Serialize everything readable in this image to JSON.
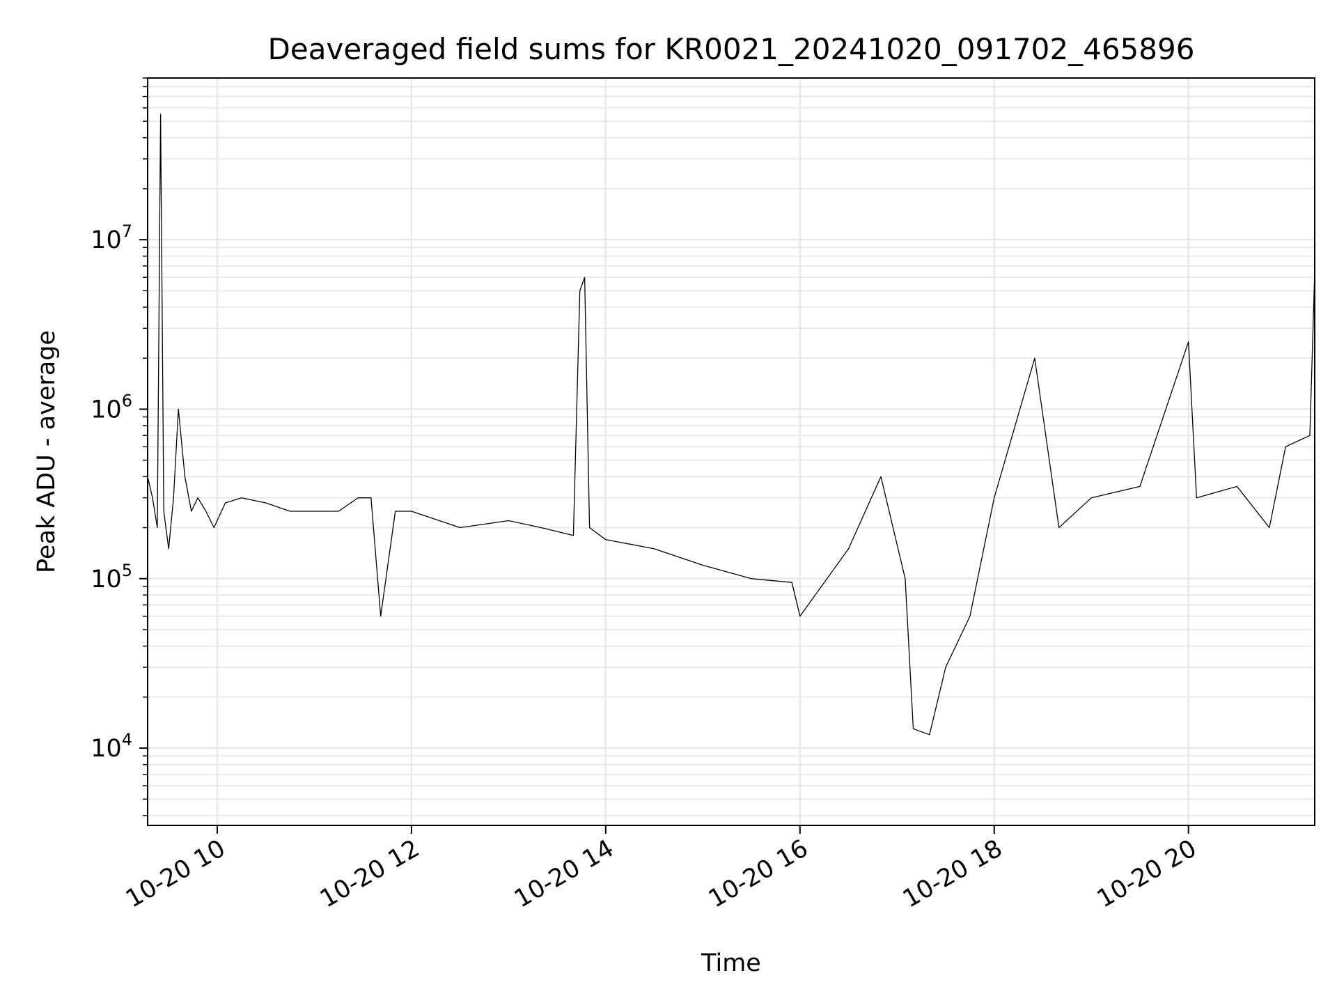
{
  "chart_data": {
    "type": "line",
    "title": "Deaveraged field sums for KR0021_20241020_091702_465896",
    "xlabel": "Time",
    "ylabel": "Peak ADU - average",
    "x_range": [
      "2024-10-20T09:17:00",
      "2024-10-20T21:18:00"
    ],
    "y_range": [
      3500,
      90000000
    ],
    "y_scale": "log",
    "grid": true,
    "minor_grid": "y",
    "x_ticks": [
      {
        "time": "2024-10-20T10:00:00",
        "label": "10-20 10"
      },
      {
        "time": "2024-10-20T12:00:00",
        "label": "10-20 12"
      },
      {
        "time": "2024-10-20T14:00:00",
        "label": "10-20 14"
      },
      {
        "time": "2024-10-20T16:00:00",
        "label": "10-20 16"
      },
      {
        "time": "2024-10-20T18:00:00",
        "label": "10-20 18"
      },
      {
        "time": "2024-10-20T20:00:00",
        "label": "10-20 20"
      }
    ],
    "y_ticks": [
      {
        "value": 10000,
        "base": "10",
        "exp": "4"
      },
      {
        "value": 100000,
        "base": "10",
        "exp": "5"
      },
      {
        "value": 1000000,
        "base": "10",
        "exp": "6"
      },
      {
        "value": 10000000,
        "base": "10",
        "exp": "7"
      }
    ],
    "line_color": "#000000",
    "grid_color": "#e6e6e6",
    "series": [
      {
        "x": [
          "2024-10-20T09:17:00",
          "2024-10-20T09:20:00",
          "2024-10-20T09:23:00",
          "2024-10-20T09:25:00",
          "2024-10-20T09:27:00",
          "2024-10-20T09:30:00",
          "2024-10-20T09:33:00",
          "2024-10-20T09:36:00",
          "2024-10-20T09:40:00",
          "2024-10-20T09:44:00",
          "2024-10-20T09:48:00",
          "2024-10-20T09:53:00",
          "2024-10-20T09:58:00",
          "2024-10-20T10:05:00",
          "2024-10-20T10:15:00",
          "2024-10-20T10:30:00",
          "2024-10-20T10:45:00",
          "2024-10-20T11:00:00",
          "2024-10-20T11:15:00",
          "2024-10-20T11:27:00",
          "2024-10-20T11:35:00",
          "2024-10-20T11:41:00",
          "2024-10-20T11:50:00",
          "2024-10-20T12:00:00",
          "2024-10-20T12:30:00",
          "2024-10-20T13:00:00",
          "2024-10-20T13:20:00",
          "2024-10-20T13:40:00",
          "2024-10-20T13:44:00",
          "2024-10-20T13:47:00",
          "2024-10-20T13:50:00",
          "2024-10-20T14:00:00",
          "2024-10-20T14:30:00",
          "2024-10-20T15:00:00",
          "2024-10-20T15:30:00",
          "2024-10-20T15:55:00",
          "2024-10-20T16:00:00",
          "2024-10-20T16:30:00",
          "2024-10-20T16:50:00",
          "2024-10-20T17:05:00",
          "2024-10-20T17:10:00",
          "2024-10-20T17:20:00",
          "2024-10-20T17:30:00",
          "2024-10-20T17:45:00",
          "2024-10-20T18:00:00",
          "2024-10-20T18:25:00",
          "2024-10-20T18:40:00",
          "2024-10-20T19:00:00",
          "2024-10-20T19:30:00",
          "2024-10-20T20:00:00",
          "2024-10-20T20:05:00",
          "2024-10-20T20:30:00",
          "2024-10-20T20:50:00",
          "2024-10-20T21:00:00",
          "2024-10-20T21:15:00",
          "2024-10-20T21:18:00"
        ],
        "y": [
          400000,
          300000,
          200000,
          55000000,
          250000,
          150000,
          300000,
          1000000,
          400000,
          250000,
          300000,
          250000,
          200000,
          280000,
          300000,
          280000,
          250000,
          250000,
          250000,
          300000,
          300000,
          60000,
          250000,
          250000,
          200000,
          220000,
          200000,
          180000,
          5000000,
          6000000,
          200000,
          170000,
          150000,
          120000,
          100000,
          95000,
          60000,
          150000,
          400000,
          100000,
          13000,
          12000,
          30000,
          60000,
          300000,
          2000000,
          200000,
          300000,
          350000,
          2500000,
          300000,
          350000,
          200000,
          600000,
          700000,
          6500000
        ]
      }
    ]
  }
}
